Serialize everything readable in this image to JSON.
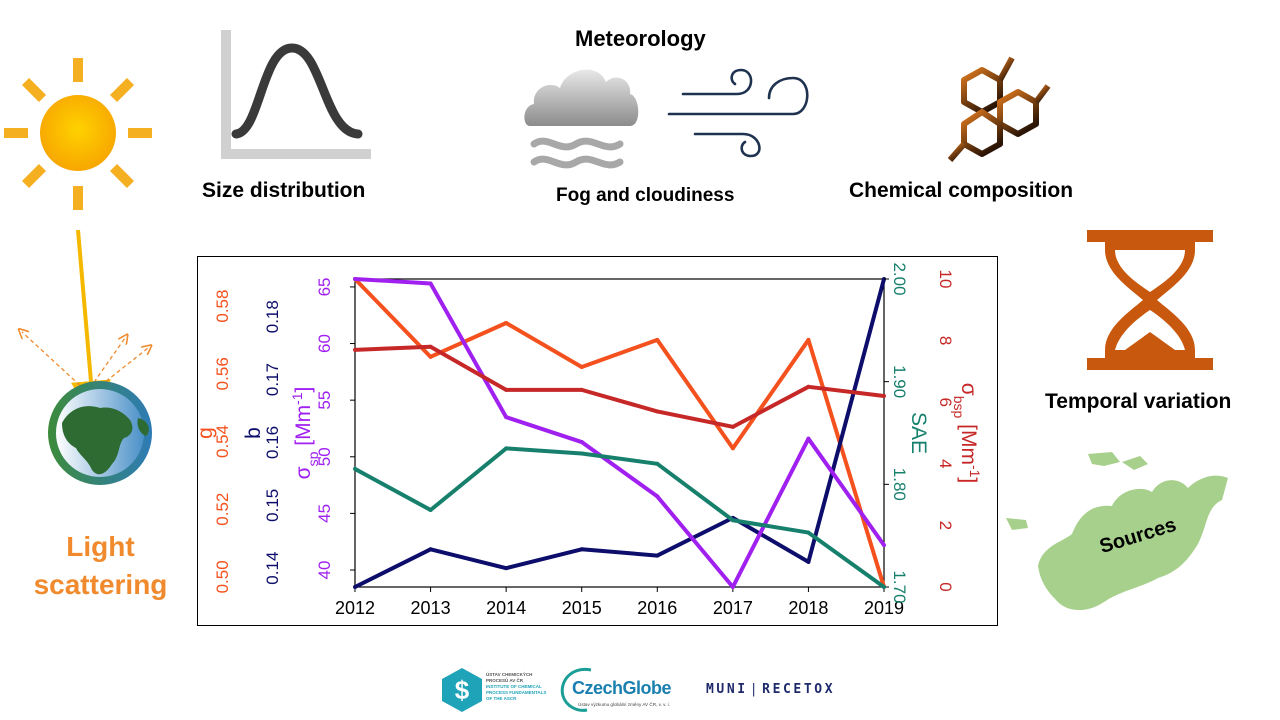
{
  "labels": {
    "meteorology": "Meteorology",
    "size_distribution": "Size distribution",
    "fog_cloudiness": "Fog and cloudiness",
    "chemical_composition": "Chemical composition",
    "temporal_variation": "Temporal variation",
    "light_scattering_1": "Light",
    "light_scattering_2": "scattering",
    "sources": "Sources"
  },
  "logos": {
    "icpf_lines": [
      "ÚSTAV CHEMICKÝCH",
      "PROCESŮ AV ČR",
      "INSTITUTE OF CHEMICAL",
      "PROCESS FUNDAMENTALS",
      "OF THE ASCR"
    ],
    "czechglobe_name": "CzechGlobe",
    "czechglobe_sub": "Ústav výzkumu globální změny AV ČR, v. v. i.",
    "muni": "MUNI",
    "recetox": "RECETOX"
  },
  "colors": {
    "g": "#F4511E",
    "b": "#0D0D6B",
    "sigma_sp": "#A020F0",
    "sae": "#17806D",
    "sigma_bsp": "#C62828",
    "light_text": "#F08A2C"
  },
  "chart_data": {
    "type": "line",
    "x": [
      2012,
      2013,
      2014,
      2015,
      2016,
      2017,
      2018,
      2019
    ],
    "xlim": [
      2012,
      2019
    ],
    "grid": false,
    "series": [
      {
        "name": "g",
        "axis": "left-1",
        "values": [
          0.588,
          0.565,
          0.575,
          0.562,
          0.57,
          0.538,
          0.57,
          0.497
        ],
        "ylim": [
          0.497,
          0.588
        ]
      },
      {
        "name": "b",
        "axis": "left-2",
        "values": [
          0.137,
          0.143,
          0.14,
          0.143,
          0.142,
          0.148,
          0.141,
          0.186
        ],
        "ylim": [
          0.137,
          0.186
        ]
      },
      {
        "name": "σsp",
        "axis": "left-3",
        "values": [
          65.7,
          65.3,
          53.5,
          51.3,
          46.5,
          38.5,
          51.6,
          42.2
        ],
        "ylim": [
          38.5,
          65.7
        ]
      },
      {
        "name": "SAE",
        "axis": "right-1",
        "values": [
          1.815,
          1.775,
          1.835,
          1.83,
          1.82,
          1.765,
          1.753,
          1.7
        ],
        "ylim": [
          1.7,
          2.0
        ]
      },
      {
        "name": "σbsp",
        "axis": "right-2",
        "values": [
          7.7,
          7.8,
          6.4,
          6.4,
          5.7,
          5.2,
          6.5,
          6.2
        ],
        "ylim": [
          0,
          10
        ]
      }
    ],
    "axes": {
      "left-1": {
        "label": "g",
        "ticks": [
          0.5,
          0.52,
          0.54,
          0.56,
          0.58
        ],
        "tick_labels": [
          "0.50",
          "0.52",
          "0.54",
          "0.56",
          "0.58"
        ]
      },
      "left-2": {
        "label": "b",
        "ticks": [
          0.14,
          0.15,
          0.16,
          0.17,
          0.18
        ],
        "tick_labels": [
          "0.14",
          "0.15",
          "0.16",
          "0.17",
          "0.18"
        ]
      },
      "left-3": {
        "label_main": "σ",
        "label_sub": "sp",
        "label_unit": " [Mm",
        "label_sup": "-1",
        "label_close": "]",
        "ticks": [
          40,
          45,
          50,
          55,
          60,
          65
        ],
        "tick_labels": [
          "40",
          "45",
          "50",
          "55",
          "60",
          "65"
        ]
      },
      "right-1": {
        "label": "SAE",
        "ticks": [
          1.7,
          1.8,
          1.9,
          2.0
        ],
        "tick_labels": [
          "1.70",
          "1.80",
          "1.90",
          "2.00"
        ]
      },
      "right-2": {
        "label_main": "σ",
        "label_sub": "bsp",
        "label_unit": " [Mm",
        "label_sup": "-1",
        "label_close": "]",
        "ticks": [
          0,
          2,
          4,
          6,
          8,
          10
        ],
        "tick_labels": [
          "0",
          "2",
          "4",
          "6",
          "8",
          "10"
        ]
      }
    }
  }
}
